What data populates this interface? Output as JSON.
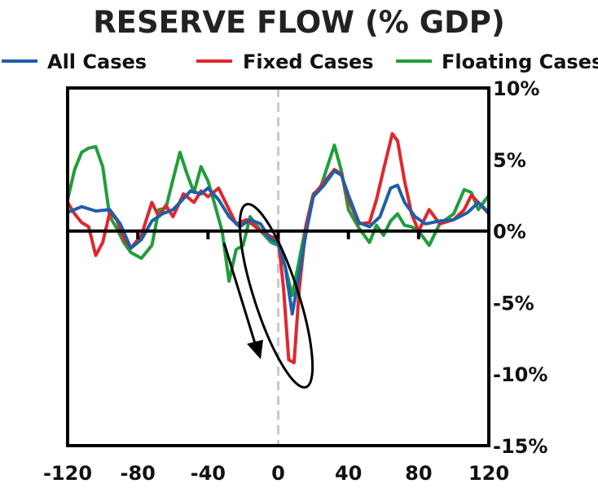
{
  "chart_data": {
    "type": "line",
    "title": "RESERVE FLOW (% GDP)",
    "xlabel": "",
    "ylabel": "",
    "xlim": [
      -120,
      120
    ],
    "ylim": [
      -15,
      10
    ],
    "x_ticks": [
      "-120",
      "-80",
      "-40",
      "0",
      "40",
      "80",
      "120"
    ],
    "y_ticks": [
      "10%",
      "5%",
      "0%",
      "-5%",
      "-10%",
      "-15%"
    ],
    "x_tick_values": [
      -120,
      -80,
      -40,
      0,
      40,
      80,
      120
    ],
    "y_tick_values": [
      10,
      5,
      0,
      -5,
      -10,
      -15
    ],
    "grid": false,
    "legend_position": "top",
    "reference_line_x": 0,
    "series": [
      {
        "name": "All Cases",
        "color": "#1f5fa8",
        "points": [
          [
            -120,
            1.3
          ],
          [
            -112,
            1.7
          ],
          [
            -104,
            1.4
          ],
          [
            -96,
            1.5
          ],
          [
            -90,
            0.5
          ],
          [
            -84,
            -1.2
          ],
          [
            -78,
            -0.6
          ],
          [
            -72,
            0.7
          ],
          [
            -66,
            1.2
          ],
          [
            -60,
            1.5
          ],
          [
            -56,
            2.0
          ],
          [
            -50,
            2.8
          ],
          [
            -44,
            2.6
          ],
          [
            -40,
            3.0
          ],
          [
            -34,
            2.2
          ],
          [
            -28,
            1.0
          ],
          [
            -22,
            0.3
          ],
          [
            -16,
            0.8
          ],
          [
            -10,
            0.5
          ],
          [
            -5,
            -0.5
          ],
          [
            0,
            -0.8
          ],
          [
            4,
            -2.5
          ],
          [
            8,
            -5.8
          ],
          [
            12,
            -3.0
          ],
          [
            16,
            0.0
          ],
          [
            20,
            2.4
          ],
          [
            26,
            3.2
          ],
          [
            32,
            4.2
          ],
          [
            36,
            3.9
          ],
          [
            40,
            2.5
          ],
          [
            46,
            0.6
          ],
          [
            52,
            0.3
          ],
          [
            58,
            1.0
          ],
          [
            64,
            3.0
          ],
          [
            68,
            3.2
          ],
          [
            72,
            2.0
          ],
          [
            78,
            1.0
          ],
          [
            84,
            0.5
          ],
          [
            92,
            0.7
          ],
          [
            100,
            0.8
          ],
          [
            108,
            1.3
          ],
          [
            114,
            2.0
          ],
          [
            120,
            1.3
          ]
        ]
      },
      {
        "name": "Fixed Cases",
        "color": "#e0262c",
        "points": [
          [
            -120,
            2.0
          ],
          [
            -116,
            1.2
          ],
          [
            -112,
            0.6
          ],
          [
            -108,
            0.3
          ],
          [
            -104,
            -1.7
          ],
          [
            -100,
            -0.8
          ],
          [
            -96,
            1.3
          ],
          [
            -92,
            0.8
          ],
          [
            -88,
            -0.5
          ],
          [
            -84,
            -1.2
          ],
          [
            -78,
            -0.3
          ],
          [
            -72,
            2.0
          ],
          [
            -68,
            1.0
          ],
          [
            -64,
            1.8
          ],
          [
            -60,
            1.0
          ],
          [
            -54,
            2.6
          ],
          [
            -48,
            2.0
          ],
          [
            -44,
            2.8
          ],
          [
            -40,
            2.4
          ],
          [
            -34,
            3.0
          ],
          [
            -30,
            2.0
          ],
          [
            -24,
            0.5
          ],
          [
            -18,
            0.8
          ],
          [
            -10,
            0.0
          ],
          [
            -4,
            -0.4
          ],
          [
            0,
            -0.5
          ],
          [
            3,
            -4.0
          ],
          [
            6,
            -9.0
          ],
          [
            9,
            -9.2
          ],
          [
            12,
            -4.0
          ],
          [
            16,
            0.5
          ],
          [
            20,
            2.5
          ],
          [
            26,
            3.4
          ],
          [
            32,
            4.3
          ],
          [
            36,
            4.0
          ],
          [
            40,
            2.2
          ],
          [
            46,
            0.5
          ],
          [
            52,
            0.6
          ],
          [
            56,
            2.2
          ],
          [
            60,
            4.3
          ],
          [
            65,
            6.8
          ],
          [
            68,
            6.3
          ],
          [
            72,
            3.5
          ],
          [
            76,
            1.2
          ],
          [
            80,
            0.0
          ],
          [
            86,
            1.5
          ],
          [
            92,
            0.5
          ],
          [
            100,
            0.8
          ],
          [
            106,
            1.5
          ],
          [
            110,
            2.5
          ],
          [
            114,
            2.0
          ],
          [
            120,
            1.2
          ]
        ]
      },
      {
        "name": "Floating Cases",
        "color": "#1f9e3a",
        "points": [
          [
            -120,
            2.2
          ],
          [
            -116,
            4.3
          ],
          [
            -112,
            5.5
          ],
          [
            -108,
            5.8
          ],
          [
            -104,
            5.9
          ],
          [
            -100,
            4.5
          ],
          [
            -96,
            1.0
          ],
          [
            -92,
            0.2
          ],
          [
            -88,
            -0.8
          ],
          [
            -84,
            -1.5
          ],
          [
            -78,
            -1.9
          ],
          [
            -72,
            -1.0
          ],
          [
            -68,
            1.5
          ],
          [
            -64,
            1.6
          ],
          [
            -60,
            3.6
          ],
          [
            -56,
            5.5
          ],
          [
            -52,
            4.0
          ],
          [
            -48,
            2.7
          ],
          [
            -44,
            4.5
          ],
          [
            -40,
            3.5
          ],
          [
            -36,
            1.8
          ],
          [
            -32,
            0.0
          ],
          [
            -28,
            -3.5
          ],
          [
            -24,
            -1.3
          ],
          [
            -20,
            -1.0
          ],
          [
            -16,
            1.0
          ],
          [
            -10,
            0.0
          ],
          [
            -4,
            -0.8
          ],
          [
            0,
            -1.0
          ],
          [
            4,
            -2.5
          ],
          [
            8,
            -4.5
          ],
          [
            12,
            -2.0
          ],
          [
            16,
            0.5
          ],
          [
            20,
            2.6
          ],
          [
            24,
            3.0
          ],
          [
            28,
            4.5
          ],
          [
            32,
            6.0
          ],
          [
            36,
            4.2
          ],
          [
            40,
            1.5
          ],
          [
            46,
            0.2
          ],
          [
            52,
            -0.8
          ],
          [
            56,
            0.4
          ],
          [
            60,
            -0.3
          ],
          [
            64,
            0.7
          ],
          [
            68,
            1.2
          ],
          [
            72,
            0.4
          ],
          [
            76,
            0.3
          ],
          [
            80,
            0.0
          ],
          [
            86,
            -1.0
          ],
          [
            92,
            0.5
          ],
          [
            100,
            1.2
          ],
          [
            106,
            2.9
          ],
          [
            110,
            2.7
          ],
          [
            114,
            1.5
          ],
          [
            120,
            2.5
          ]
        ]
      }
    ],
    "annotations": [
      "ellipse",
      "arrow"
    ]
  }
}
